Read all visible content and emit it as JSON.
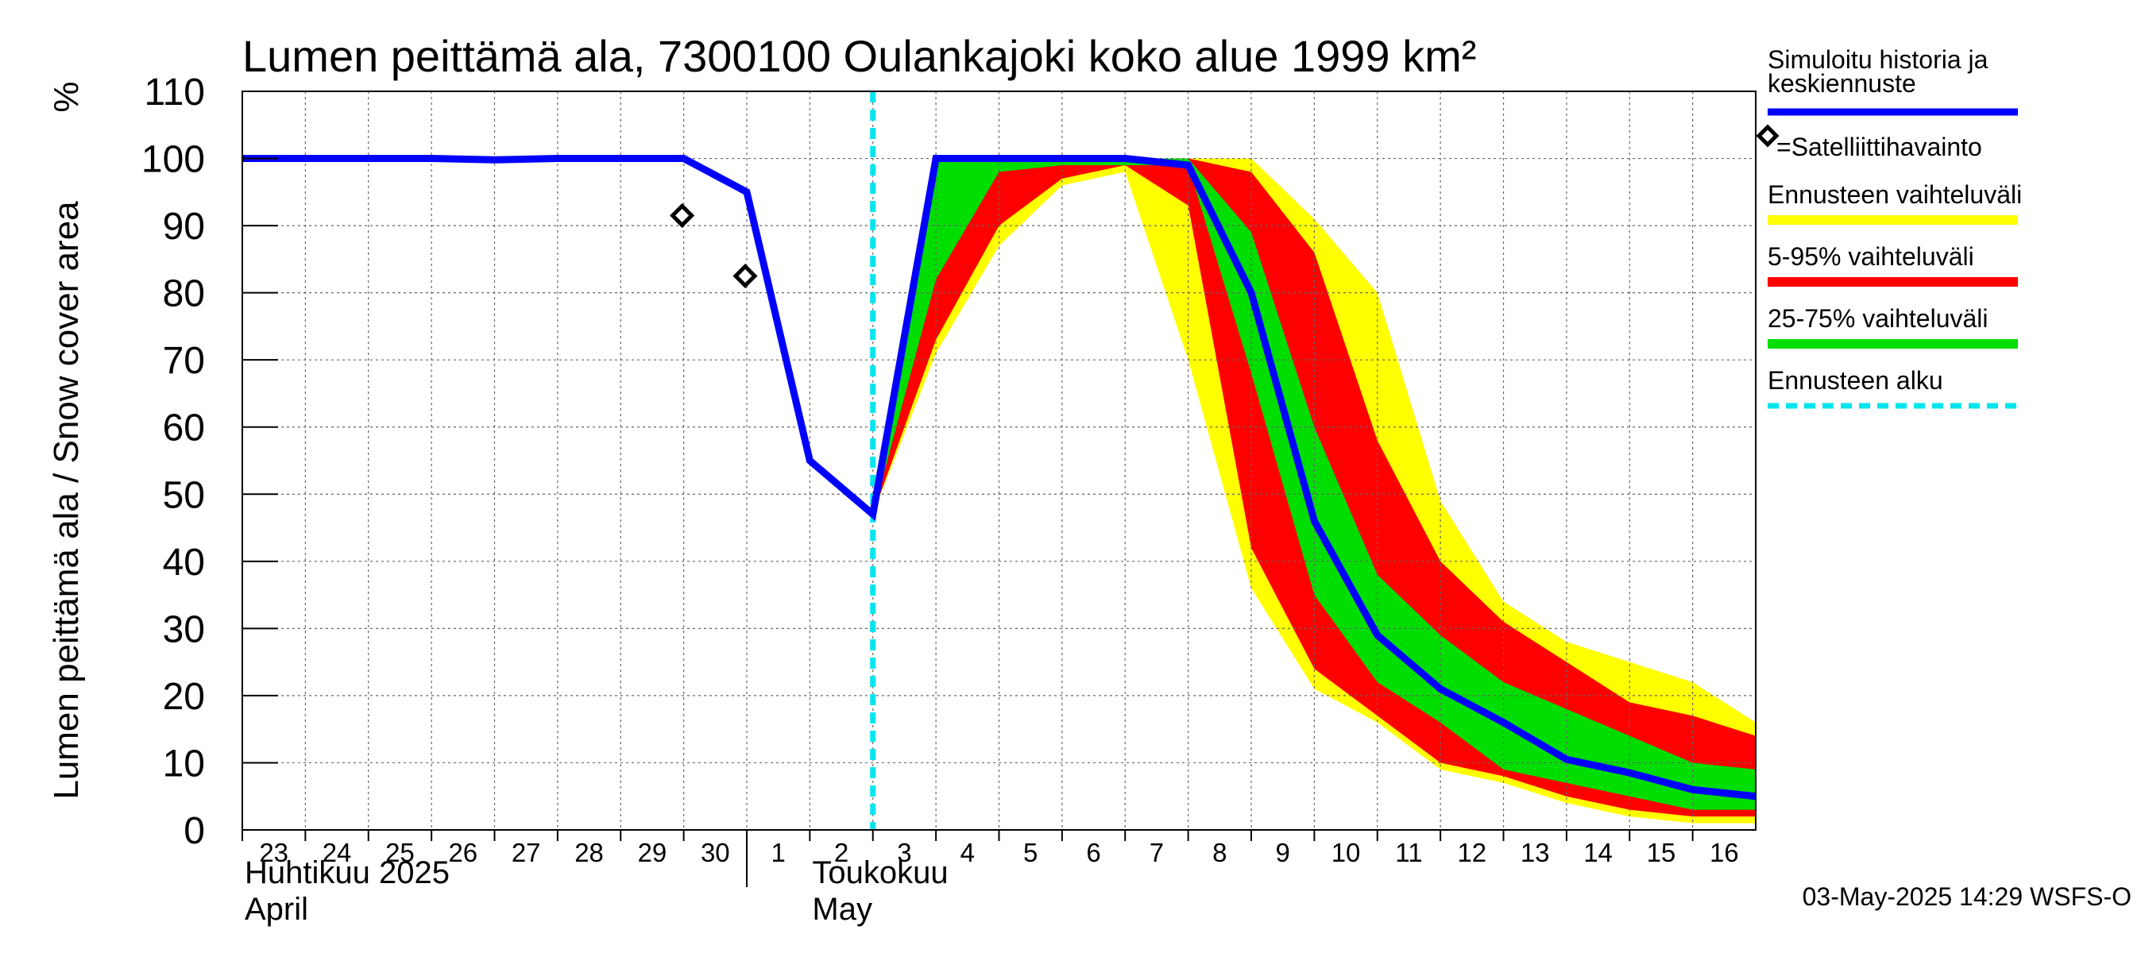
{
  "chart_data": {
    "type": "area",
    "title": "Lumen peittämä ala, 7300100 Oulankajoki koko alue 1999 km²",
    "ylabel": "Lumen peittämä ala / Snow cover area",
    "yunit": "%",
    "ylim": [
      0,
      110
    ],
    "yticks": [
      0,
      10,
      20,
      30,
      40,
      50,
      60,
      70,
      80,
      90,
      100,
      110
    ],
    "xlim": [
      0,
      24
    ],
    "xticks": [
      {
        "x": 0,
        "label": "23"
      },
      {
        "x": 1,
        "label": "24"
      },
      {
        "x": 2,
        "label": "25"
      },
      {
        "x": 3,
        "label": "26"
      },
      {
        "x": 4,
        "label": "27"
      },
      {
        "x": 5,
        "label": "28"
      },
      {
        "x": 6,
        "label": "29"
      },
      {
        "x": 7,
        "label": "30"
      },
      {
        "x": 8,
        "label": "1"
      },
      {
        "x": 9,
        "label": "2"
      },
      {
        "x": 10,
        "label": "3"
      },
      {
        "x": 11,
        "label": "4"
      },
      {
        "x": 12,
        "label": "5"
      },
      {
        "x": 13,
        "label": "6"
      },
      {
        "x": 14,
        "label": "7"
      },
      {
        "x": 15,
        "label": "8"
      },
      {
        "x": 16,
        "label": "9"
      },
      {
        "x": 17,
        "label": "10"
      },
      {
        "x": 18,
        "label": "11"
      },
      {
        "x": 19,
        "label": "12"
      },
      {
        "x": 20,
        "label": "13"
      },
      {
        "x": 21,
        "label": "14"
      },
      {
        "x": 22,
        "label": "15"
      },
      {
        "x": 23,
        "label": "16"
      }
    ],
    "month_separator_x": 8,
    "months": [
      {
        "x": 0,
        "line1": "Huhtikuu  2025",
        "line2": "April"
      },
      {
        "x": 9,
        "line1": "Toukokuu",
        "line2": "May"
      }
    ],
    "forecast_start_x": 10,
    "band_x": [
      10,
      11,
      12,
      13,
      14,
      15,
      16,
      17,
      18,
      19,
      20,
      21,
      22,
      23,
      24
    ],
    "bands": [
      {
        "name": "Ennusteen vaihteluväli",
        "color": "#ffff00",
        "upper": [
          47,
          100,
          100,
          100,
          100,
          100,
          100,
          91,
          80,
          49,
          34,
          28,
          25,
          22,
          16
        ],
        "lower": [
          47,
          71,
          87,
          96,
          98,
          70,
          36,
          21,
          16,
          9,
          7,
          4,
          2,
          1,
          1
        ]
      },
      {
        "name": "5-95% vaihteluväli",
        "color": "#ff0000",
        "upper": [
          47,
          100,
          100,
          100,
          100,
          100,
          98,
          86,
          58,
          40,
          31,
          25,
          19,
          17,
          14
        ],
        "lower": [
          47,
          73,
          90,
          97,
          99,
          93,
          42,
          24,
          17,
          10,
          8,
          5,
          3,
          2,
          2
        ]
      },
      {
        "name": "25-75% vaihteluväli",
        "color": "#00dd00",
        "upper": [
          47,
          100,
          100,
          100,
          100,
          100,
          89,
          60,
          38,
          29,
          22,
          18,
          14,
          10,
          9
        ],
        "lower": [
          47,
          82,
          98,
          99,
          99,
          99,
          68,
          35,
          22,
          16,
          9,
          7,
          5,
          3,
          3
        ]
      }
    ],
    "series": [
      {
        "name": "Simuloitu historia ja keskiennuste",
        "color": "#0000ff",
        "x": [
          0,
          1,
          2,
          3,
          4,
          5,
          6,
          7,
          8,
          9,
          10,
          11,
          12,
          13,
          14,
          15,
          16,
          17,
          18,
          19,
          20,
          21,
          22,
          23,
          24
        ],
        "y": [
          100,
          100,
          100,
          100,
          99.8,
          100,
          100,
          100,
          95,
          55,
          47,
          100,
          100,
          100,
          100,
          99,
          80,
          46,
          29,
          21,
          16,
          10.5,
          8.5,
          6,
          5
        ]
      }
    ],
    "satellite": {
      "name": "=Satelliittihavainto",
      "x": [
        7,
        8
      ],
      "y": [
        91.5,
        82.5
      ]
    },
    "legend": [
      {
        "label": "Simuloitu historia ja\nkeskiennuste",
        "color": "#0000ff",
        "style": "line"
      },
      {
        "label": "=Satelliittihavainto",
        "color": "#000000",
        "style": "diamond"
      },
      {
        "label": "Ennusteen vaihteluväli",
        "color": "#ffff00",
        "style": "band"
      },
      {
        "label": "5-95% vaihteluväli",
        "color": "#ff0000",
        "style": "band"
      },
      {
        "label": "25-75% vaihteluväli",
        "color": "#00dd00",
        "style": "band"
      },
      {
        "label": "Ennusteen alku",
        "color": "#00e5ee",
        "style": "dashed"
      }
    ],
    "forecast_line_color": "#00e5ee",
    "footer": "03-May-2025 14:29 WSFS-O"
  }
}
